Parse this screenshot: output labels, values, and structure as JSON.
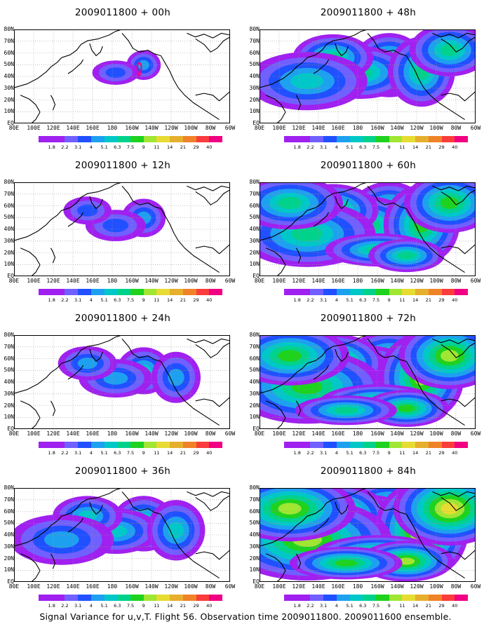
{
  "panels": [
    {
      "title": "2009011800 + 00h",
      "intensity": 0
    },
    {
      "title": "2009011800 + 48h",
      "intensity": 4
    },
    {
      "title": "2009011800 + 12h",
      "intensity": 1
    },
    {
      "title": "2009011800 + 60h",
      "intensity": 5
    },
    {
      "title": "2009011800 + 24h",
      "intensity": 2
    },
    {
      "title": "2009011800 + 72h",
      "intensity": 6
    },
    {
      "title": "2009011800 + 36h",
      "intensity": 3
    },
    {
      "title": "2009011800 + 84h",
      "intensity": 7
    }
  ],
  "lat_labels": [
    "80N",
    "70N",
    "60N",
    "50N",
    "40N",
    "30N",
    "20N",
    "10N",
    "EQ"
  ],
  "lon_labels": [
    "80E",
    "100E",
    "120E",
    "140E",
    "160E",
    "180",
    "160W",
    "140W",
    "120W",
    "100W",
    "80W",
    "60W"
  ],
  "colorbar": {
    "labels": [
      "1.8",
      "2.2",
      "3.1",
      "4",
      "5.1",
      "6.3",
      "7.5",
      "9",
      "11",
      "14",
      "21",
      "29",
      "40"
    ],
    "colors": [
      "#a020f0",
      "#7060ff",
      "#2050ff",
      "#1ea0f0",
      "#00c8c8",
      "#00d28c",
      "#1ed21e",
      "#a0e632",
      "#e6dc32",
      "#e6af2d",
      "#f08228",
      "#fa3c3c",
      "#f00082"
    ]
  },
  "footer": "Signal Variance for u,v,T. Flight 56. Observation time 2009011800. 2009011600 ensemble."
}
